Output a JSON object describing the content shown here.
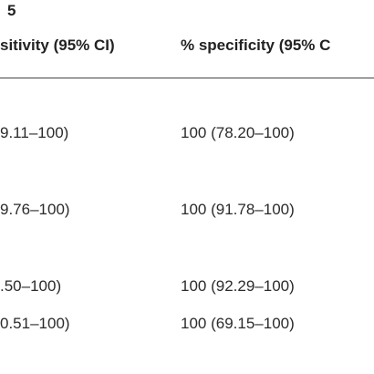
{
  "title": "5",
  "table": {
    "header": [
      "sitivity (95% CI)",
      "% specificity (95% C"
    ],
    "rows": [
      [
        "9.11–100)",
        "100 (78.20–100)"
      ],
      [
        "9.76–100)",
        "100 (91.78–100)"
      ],
      [
        ".50–100)",
        "100 (92.29–100)"
      ],
      [
        "0.51–100)",
        "100 (69.15–100)"
      ]
    ]
  }
}
